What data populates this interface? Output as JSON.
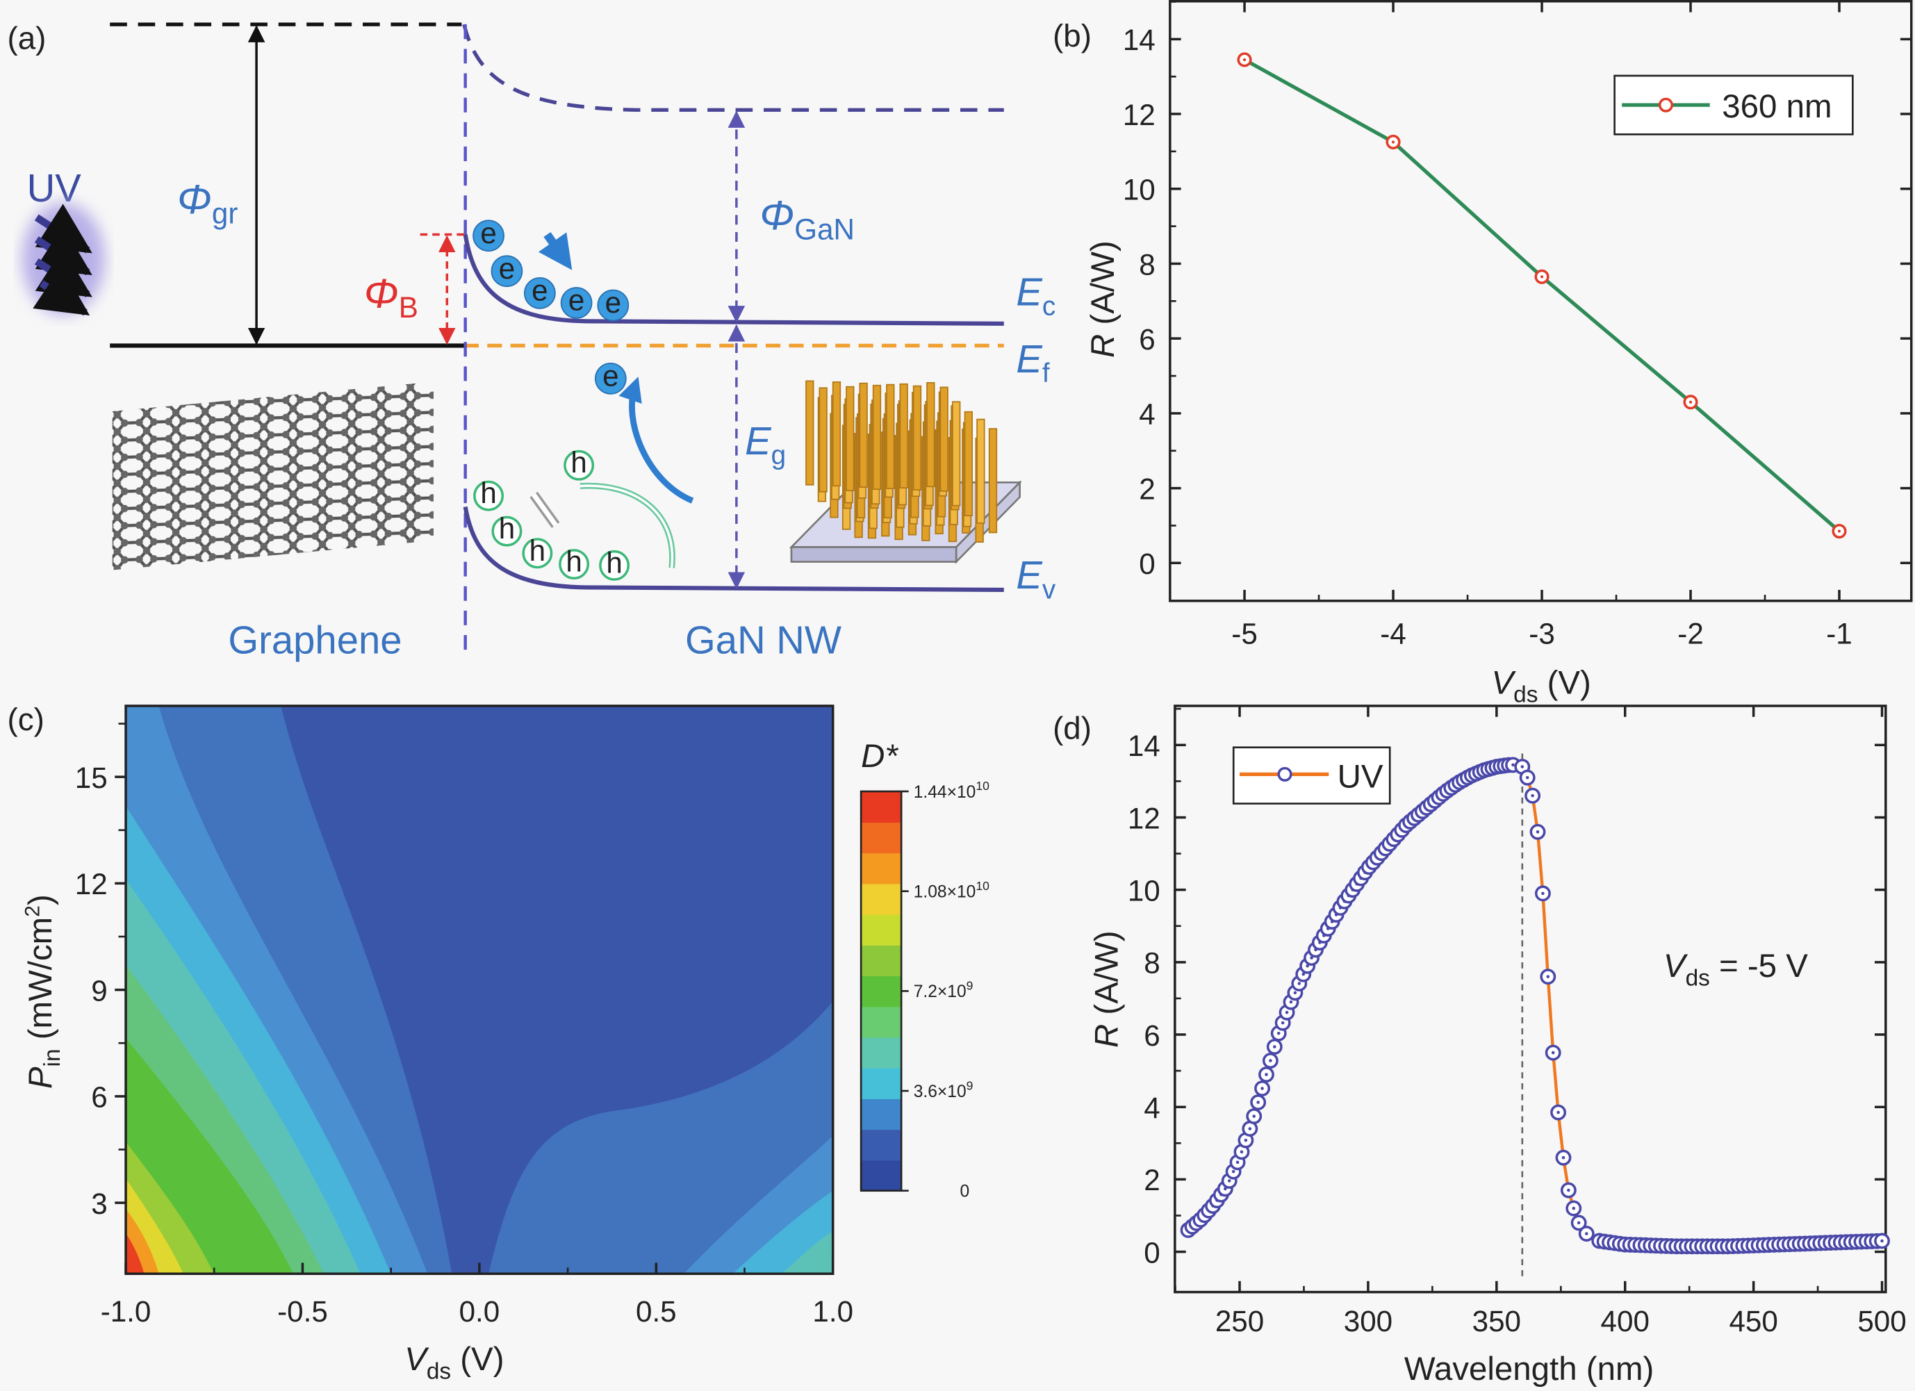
{
  "panel_labels": [
    "(a)",
    "(b)",
    "(c)",
    "(d)"
  ],
  "diagram": {
    "phi_gr": "Φ",
    "phi_gr_sub": "gr",
    "phi_b": "Φ",
    "phi_b_sub": "B",
    "phi_gan": "Φ",
    "phi_gan_sub": "GaN",
    "uv": "UV",
    "ec": "E",
    "ec_sub": "c",
    "ef": "E",
    "ef_sub": "f",
    "ev": "E",
    "ev_sub": "v",
    "eg": "E",
    "eg_sub": "g",
    "electron": "e",
    "hole": "h",
    "graphene": "Graphene",
    "gan_nw": "GaN NW",
    "colors": {
      "electron": "#3a9be0",
      "hole_ring": "#3cb878",
      "hole_text": "#d0306a",
      "band": "#4a4595",
      "fermi": "#f0a030",
      "barrier": "#e03030"
    }
  },
  "chart_data": [
    {
      "type": "line",
      "title": "(b)",
      "xlabel": "V",
      "xlabel_sub": "ds",
      "xlabel_unit": " (V)",
      "ylabel": "R",
      "ylabel_unit": " (A/W)",
      "xlim": [
        -5.5,
        -0.5
      ],
      "ylim": [
        -1,
        15
      ],
      "xticks": [
        "-5",
        "-4",
        "-3",
        "-2",
        "-1"
      ],
      "xtick_values": [
        -5,
        -4,
        -3,
        -2,
        -1
      ],
      "yticks": [
        "0",
        "2",
        "4",
        "6",
        "8",
        "10",
        "12",
        "14"
      ],
      "ytick_values": [
        0,
        2,
        4,
        6,
        8,
        10,
        12,
        14
      ],
      "legend": "360 nm",
      "legend_position": "top-right",
      "series": [
        {
          "name": "360 nm",
          "x": [
            -5,
            -4,
            -3,
            -2,
            -1
          ],
          "y": [
            13.45,
            11.25,
            7.65,
            4.3,
            0.85
          ],
          "line_color": "#2e8b57",
          "marker_color": "#e03c28"
        }
      ]
    },
    {
      "type": "heatmap",
      "title": "(c)",
      "xlabel": "V",
      "xlabel_sub": "ds",
      "xlabel_unit": " (V)",
      "ylabel": "P",
      "ylabel_sub": "in",
      "ylabel_unit": " (mW/cm",
      "ylabel_sup": "2",
      "ylabel_close": ")",
      "xlim": [
        -1,
        1
      ],
      "ylim": [
        1,
        17
      ],
      "xticks": [
        "-1.0",
        "-0.5",
        "0.0",
        "0.5",
        "1.0"
      ],
      "xtick_values": [
        -1,
        -0.5,
        0,
        0.5,
        1
      ],
      "yticks": [
        "3",
        "6",
        "9",
        "12",
        "15"
      ],
      "ytick_values": [
        3,
        6,
        9,
        12,
        15
      ],
      "colorbar": {
        "label": "D*",
        "ticks": [
          {
            "label": "1.44×10",
            "sup": "10",
            "value": 14400000000.0
          },
          {
            "label": "1.08×10",
            "sup": "10",
            "value": 10800000000.0
          },
          {
            "label": "7.2×10",
            "sup": "9",
            "value": 7200000000.0
          },
          {
            "label": "3.6×10",
            "sup": "9",
            "value": 3600000000.0
          },
          {
            "label": "0",
            "sup": "",
            "value": 0
          }
        ],
        "colors": [
          "#2f4aa0",
          "#3a5cb0",
          "#3f86cc",
          "#45c0d8",
          "#5fc6b0",
          "#6acc70",
          "#5cc03a",
          "#8cc83a",
          "#c8dc30",
          "#f0d030",
          "#f59a20",
          "#f06a20",
          "#e83a20"
        ]
      }
    },
    {
      "type": "scatter",
      "title": "(d)",
      "xlabel": "Wavelength (nm)",
      "ylabel": "R",
      "ylabel_unit": " (A/W)",
      "xlim": [
        225,
        500
      ],
      "ylim": [
        -1,
        15
      ],
      "xticks": [
        "250",
        "300",
        "350",
        "400",
        "450",
        "500"
      ],
      "xtick_values": [
        250,
        300,
        350,
        400,
        450,
        500
      ],
      "yticks": [
        "0",
        "2",
        "4",
        "6",
        "8",
        "10",
        "12",
        "14"
      ],
      "ytick_values": [
        0,
        2,
        4,
        6,
        8,
        10,
        12,
        14
      ],
      "legend": "UV",
      "legend_position": "top-left",
      "annotation": {
        "text": "V",
        "sub": "ds",
        "rest": " =  -5 V"
      },
      "cutoff_line_x": 360,
      "series": [
        {
          "name": "UV",
          "marker_color": "#4a48a8",
          "line_color": "#f07820",
          "x": [
            230,
            235,
            240,
            245,
            250,
            255,
            260,
            265,
            270,
            275,
            280,
            285,
            290,
            295,
            300,
            305,
            310,
            315,
            320,
            325,
            330,
            335,
            340,
            345,
            350,
            355,
            358,
            360,
            362,
            364,
            366,
            368,
            370,
            372,
            374,
            376,
            378,
            380,
            382,
            385,
            390,
            400,
            420,
            440,
            460,
            480,
            500
          ],
          "y": [
            0.6,
            0.9,
            1.3,
            1.8,
            2.6,
            3.6,
            4.8,
            6.0,
            6.9,
            7.7,
            8.4,
            9.0,
            9.6,
            10.1,
            10.6,
            11.0,
            11.4,
            11.8,
            12.1,
            12.4,
            12.7,
            12.95,
            13.15,
            13.3,
            13.4,
            13.45,
            13.45,
            13.4,
            13.1,
            12.6,
            11.6,
            9.9,
            7.6,
            5.5,
            3.85,
            2.6,
            1.7,
            1.2,
            0.8,
            0.5,
            0.3,
            0.2,
            0.15,
            0.15,
            0.2,
            0.25,
            0.3
          ]
        }
      ]
    }
  ]
}
